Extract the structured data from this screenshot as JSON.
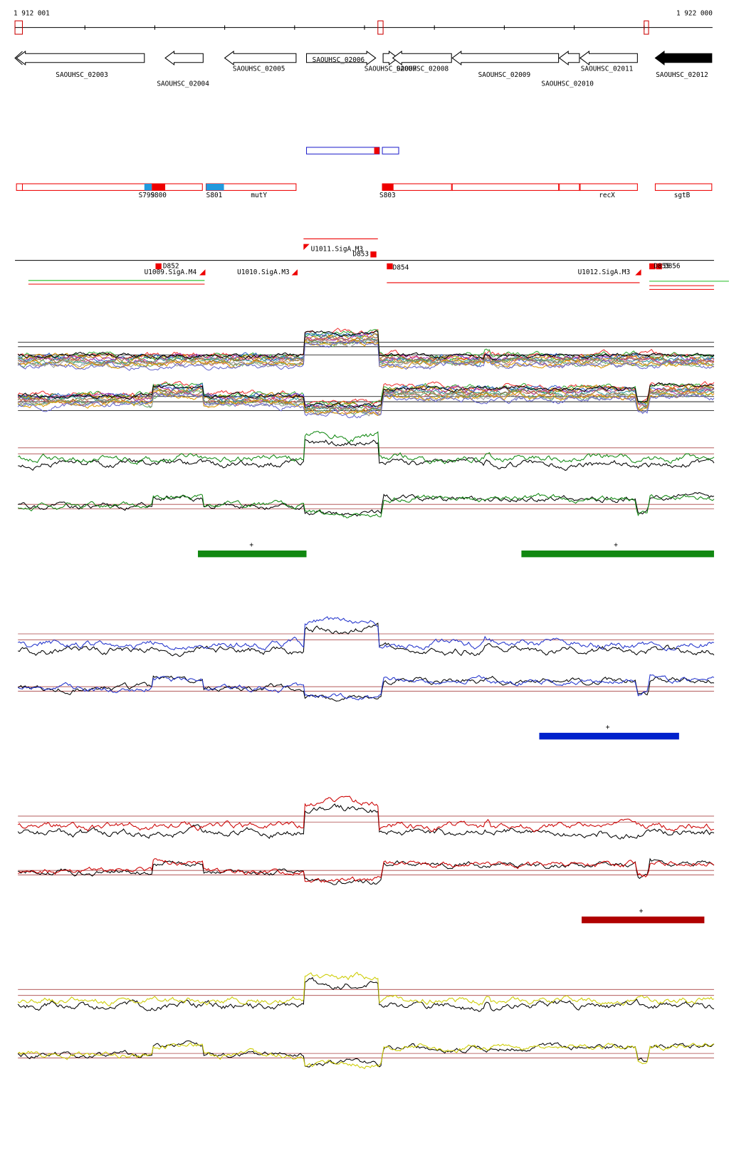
{
  "ruler": {
    "start": "1 912 001",
    "end": "1 922 000"
  },
  "genes": [
    "SAOUHSC_02003",
    "SAOUHSC_02004",
    "SAOUHSC_02005",
    "SAOUHSC_02006",
    "SAOUHSC_02007",
    "SAOUHSC_02008",
    "SAOUHSC_02009",
    "SAOUHSC_02010",
    "SAOUHSC_02011",
    "SAOUHSC_02012"
  ],
  "features": [
    "S799",
    "S800",
    "S801",
    "mutY",
    "S803",
    "recX",
    "sgtB"
  ],
  "transcripts": [
    "U1011.SigA.M3",
    "D853",
    "D852",
    "U1009.SigA.M4",
    "U1010.SigA.M3",
    "D854",
    "U1012.SigA.M3",
    "D855",
    "D856"
  ],
  "strand_marks": [
    "+",
    "+",
    "+",
    "+"
  ]
}
